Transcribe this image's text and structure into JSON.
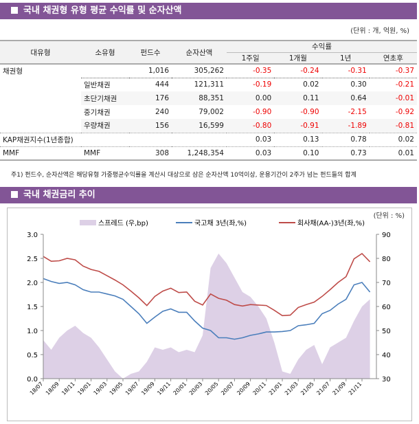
{
  "section1": {
    "title": "국내 채권형 유형 평균 수익률 및 순자산액",
    "unit": "(단위 : 개, 억원, %)",
    "headers": {
      "major": "대유형",
      "minor": "소유형",
      "funds": "펀드수",
      "assets": "순자산액",
      "returns": "수익률",
      "periods": [
        "1주일",
        "1개월",
        "1년",
        "연초후"
      ]
    },
    "rows": [
      {
        "major": "채권형",
        "minor": "",
        "funds": "1,016",
        "assets": "305,262",
        "r": [
          "-0.35",
          "-0.24",
          "-0.31",
          "-0.37"
        ]
      },
      {
        "major": "",
        "minor": "일반채권",
        "funds": "444",
        "assets": "121,311",
        "r": [
          "-0.19",
          "0.02",
          "0.30",
          "-0.21"
        ]
      },
      {
        "major": "",
        "minor": "초단기채권",
        "funds": "176",
        "assets": "88,351",
        "r": [
          "0.00",
          "0.11",
          "0.64",
          "-0.01"
        ]
      },
      {
        "major": "",
        "minor": "중기채권",
        "funds": "240",
        "assets": "79,002",
        "r": [
          "-0.90",
          "-0.90",
          "-2.15",
          "-0.92"
        ]
      },
      {
        "major": "",
        "minor": "우량채권",
        "funds": "156",
        "assets": "16,599",
        "r": [
          "-0.80",
          "-0.91",
          "-1.89",
          "-0.81"
        ]
      },
      {
        "major": "KAP채권지수(1년종합)",
        "minor": "",
        "funds": "",
        "assets": "",
        "r": [
          "0.03",
          "0.13",
          "0.78",
          "0.02"
        ]
      },
      {
        "major": "MMF",
        "minor": "MMF",
        "funds": "308",
        "assets": "1,248,354",
        "r": [
          "0.03",
          "0.10",
          "0.73",
          "0.01"
        ]
      }
    ],
    "note": "주1) 펀드수, 순자산액은 해당유형 가중평균수익률을 계산시 대상으로 삼은 순자산액 10억이상, 운용기간이 2주가 넘는 펀드들의 합계"
  },
  "section2": {
    "title": "국내 채권금리 추이",
    "unit": "(단위 : %)"
  },
  "chart_data": {
    "type": "line+area",
    "x_ticks": [
      "18/07",
      "18/09",
      "18/11",
      "19/01",
      "19/03",
      "19/05",
      "19/07",
      "19/09",
      "19/11",
      "20/01",
      "20/03",
      "20/05",
      "20/07",
      "20/09",
      "20/11",
      "21/01",
      "21/03",
      "21/05",
      "21/07",
      "21/09",
      "21/11"
    ],
    "x": [
      "18/07",
      "18/08",
      "18/09",
      "18/10",
      "18/11",
      "18/12",
      "19/01",
      "19/02",
      "19/03",
      "19/04",
      "19/05",
      "19/06",
      "19/07",
      "19/08",
      "19/09",
      "19/10",
      "19/11",
      "19/12",
      "20/01",
      "20/02",
      "20/03",
      "20/04",
      "20/05",
      "20/06",
      "20/07",
      "20/08",
      "20/09",
      "20/10",
      "20/11",
      "20/12",
      "21/01",
      "21/02",
      "21/03",
      "21/04",
      "21/05",
      "21/06",
      "21/07",
      "21/08",
      "21/09",
      "21/10",
      "21/11",
      "21/12"
    ],
    "ylim_left": [
      0,
      3.0
    ],
    "yticks_left": [
      "0.0",
      "0.5",
      "1.0",
      "1.5",
      "2.0",
      "2.5",
      "3.0"
    ],
    "ylim_right": [
      30,
      90
    ],
    "yticks_right": [
      "30",
      "40",
      "50",
      "60",
      "70",
      "80",
      "90"
    ],
    "legend_position": "top",
    "grid": false,
    "series": [
      {
        "name": "스프레드 (우,bp)",
        "axis": "right",
        "kind": "area",
        "color": "#ddd0e6",
        "values": [
          46,
          42,
          47,
          50,
          52,
          49,
          47,
          43,
          38,
          33,
          30,
          32,
          33,
          37,
          43,
          42,
          43,
          41,
          42,
          41,
          48,
          76,
          82,
          78,
          72,
          66,
          64,
          60,
          55,
          45,
          33,
          32,
          38,
          42,
          44,
          36,
          43,
          45,
          47,
          54,
          60,
          63
        ]
      },
      {
        "name": "국고채 3년(좌,%)",
        "axis": "left",
        "kind": "line",
        "color": "#4a7ebb",
        "values": [
          2.08,
          2.02,
          1.98,
          2.0,
          1.95,
          1.85,
          1.8,
          1.8,
          1.76,
          1.72,
          1.65,
          1.5,
          1.35,
          1.15,
          1.28,
          1.4,
          1.45,
          1.38,
          1.38,
          1.2,
          1.05,
          1.0,
          0.85,
          0.85,
          0.82,
          0.85,
          0.9,
          0.93,
          0.97,
          0.97,
          0.98,
          1.0,
          1.1,
          1.12,
          1.15,
          1.35,
          1.42,
          1.55,
          1.65,
          1.95,
          2.0,
          1.8
        ]
      },
      {
        "name": "회사채(AA-)3년(좌,%)",
        "axis": "left",
        "kind": "line",
        "color": "#be4b48",
        "values": [
          2.54,
          2.44,
          2.45,
          2.5,
          2.47,
          2.34,
          2.27,
          2.23,
          2.14,
          2.05,
          1.95,
          1.82,
          1.68,
          1.52,
          1.71,
          1.82,
          1.88,
          1.79,
          1.8,
          1.61,
          1.53,
          1.76,
          1.67,
          1.63,
          1.54,
          1.51,
          1.54,
          1.53,
          1.52,
          1.42,
          1.31,
          1.32,
          1.48,
          1.54,
          1.59,
          1.71,
          1.85,
          2.0,
          2.12,
          2.49,
          2.6,
          2.43
        ]
      }
    ]
  }
}
